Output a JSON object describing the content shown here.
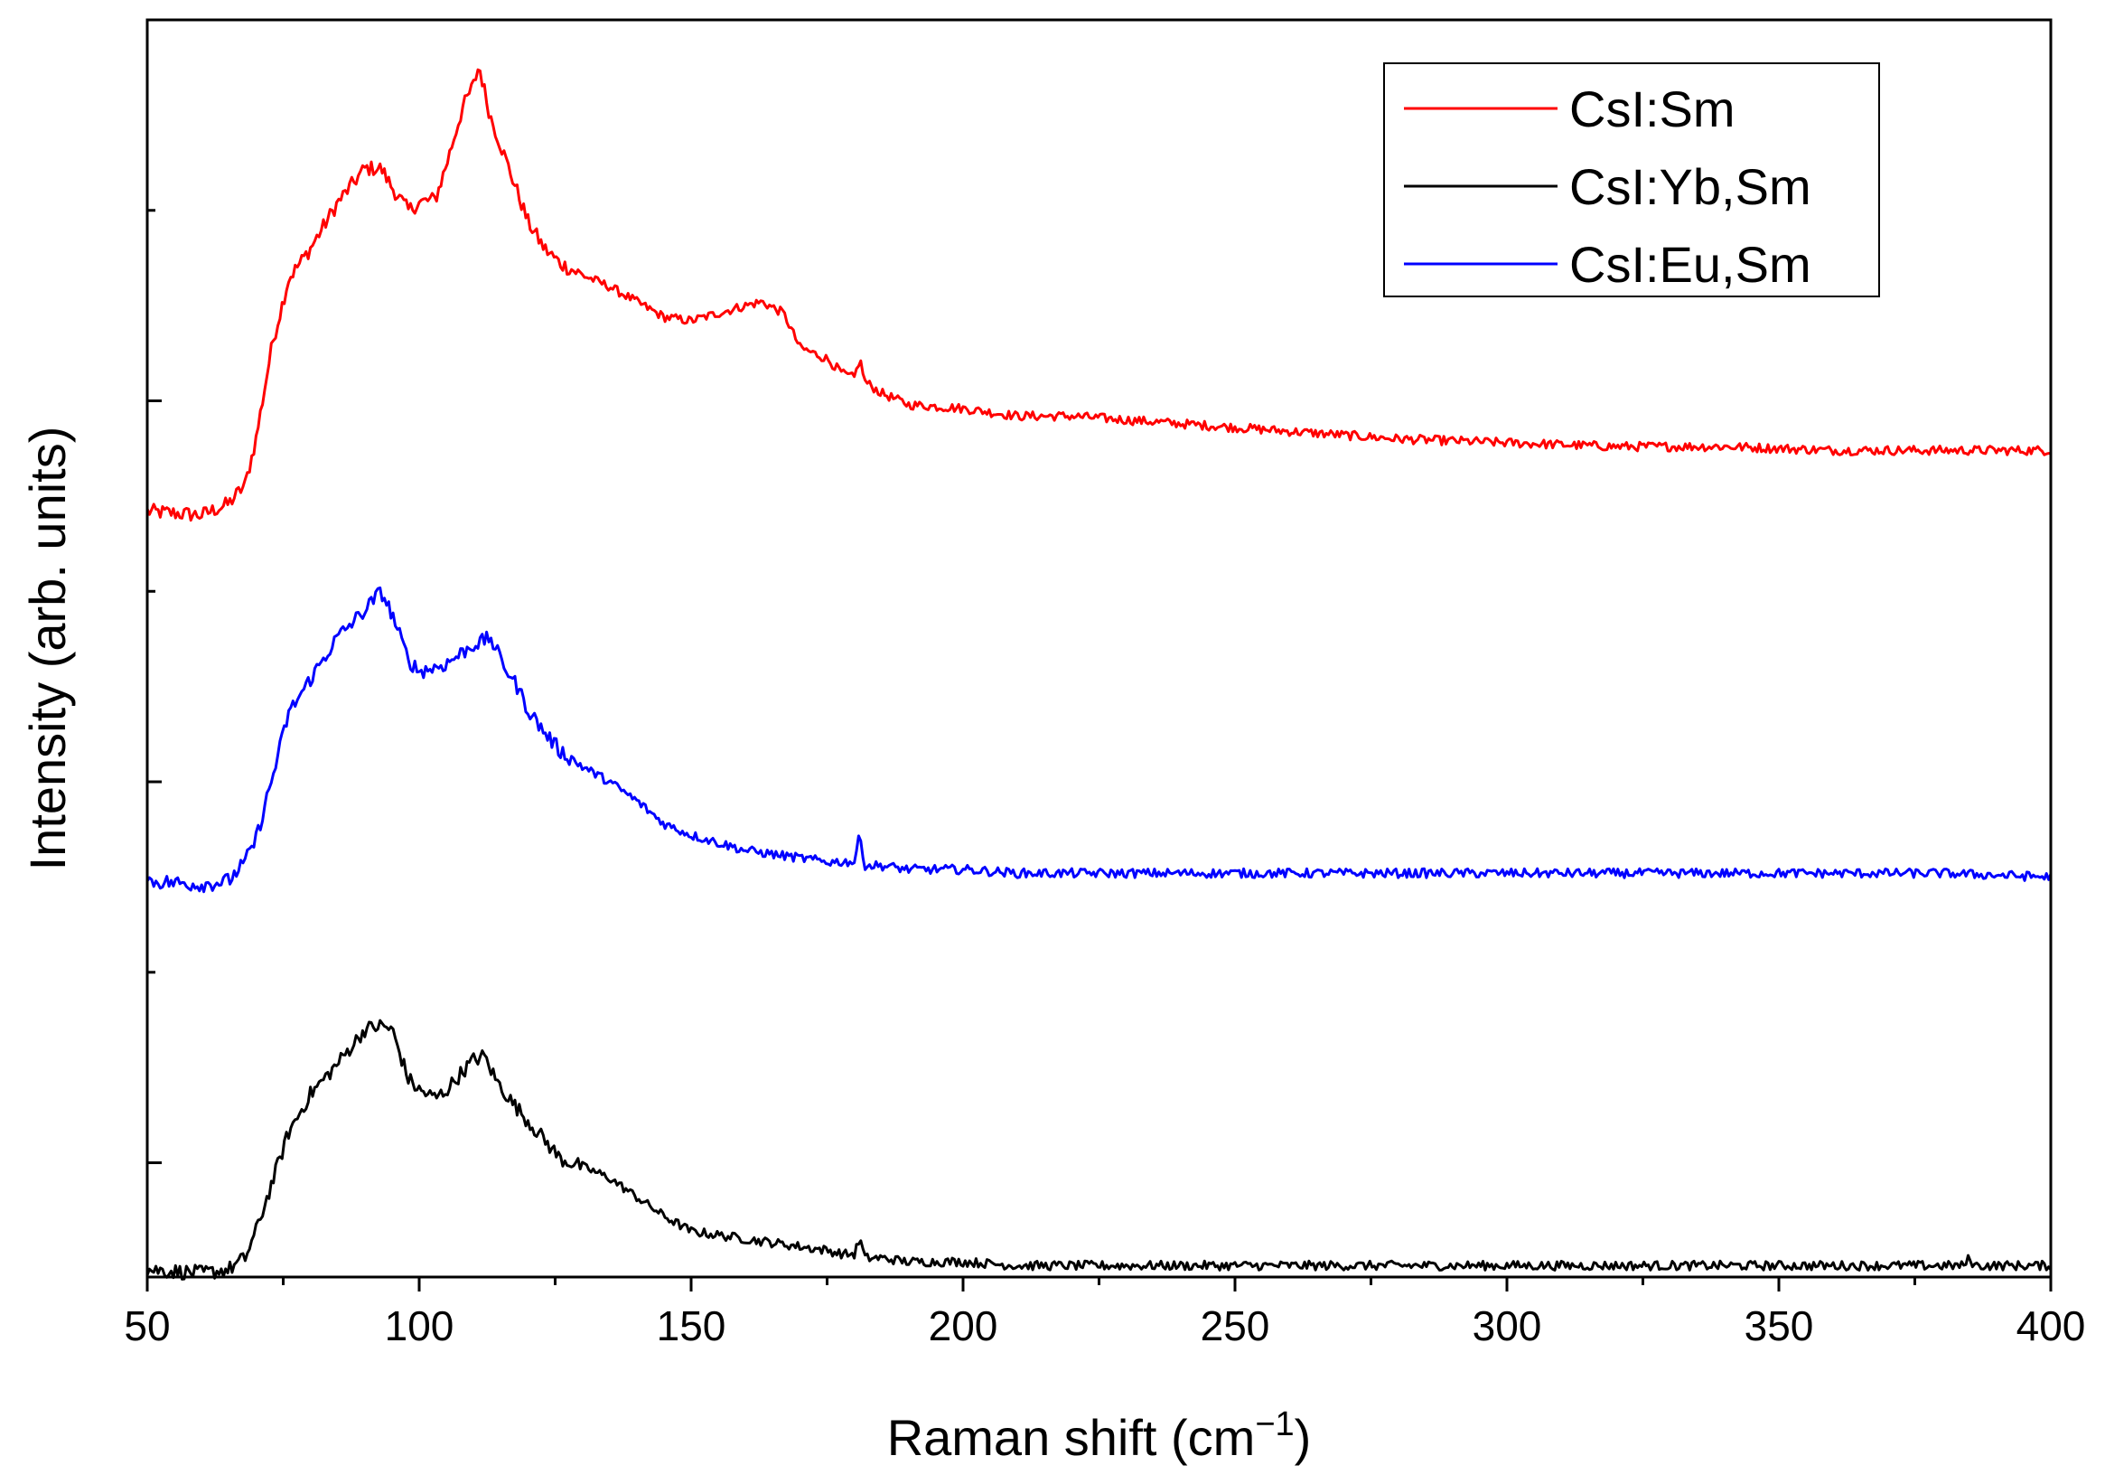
{
  "chart_data": {
    "type": "line",
    "title": "",
    "xlabel_main": "Raman shift (cm",
    "xlabel_sup": "−1",
    "xlabel_close": ")",
    "ylabel": "Intensity (arb. units)",
    "xlim": [
      50,
      400
    ],
    "ylim": [
      0,
      3.3
    ],
    "x_ticks": [
      50,
      100,
      150,
      200,
      250,
      300,
      350,
      400
    ],
    "y_ticks_major": [
      0.3,
      1.3,
      2.3
    ],
    "y_ticks_minor": [
      0.8,
      1.8,
      2.8
    ],
    "grid": false,
    "legend_position": "top-right",
    "series": [
      {
        "name": "CsI:Sm",
        "color": "#ff0000",
        "x": [
          50,
          60,
          65,
          68,
          70,
          73,
          76,
          80,
          85,
          90,
          93,
          95,
          98,
          100,
          103,
          105,
          108,
          110,
          111,
          113,
          116,
          118,
          120,
          123,
          126,
          130,
          135,
          140,
          145,
          150,
          155,
          160,
          163,
          167,
          170,
          175,
          178,
          180,
          181,
          182,
          185,
          190,
          200,
          210,
          220,
          240,
          260,
          280,
          300,
          320,
          340,
          360,
          380,
          400
        ],
        "y": [
          2.01,
          2.0,
          2.03,
          2.08,
          2.2,
          2.45,
          2.62,
          2.7,
          2.82,
          2.91,
          2.91,
          2.86,
          2.8,
          2.82,
          2.83,
          2.92,
          3.07,
          3.13,
          3.18,
          3.05,
          2.93,
          2.85,
          2.77,
          2.7,
          2.66,
          2.63,
          2.6,
          2.56,
          2.52,
          2.51,
          2.53,
          2.55,
          2.56,
          2.53,
          2.44,
          2.41,
          2.37,
          2.36,
          2.41,
          2.35,
          2.32,
          2.29,
          2.28,
          2.26,
          2.26,
          2.24,
          2.22,
          2.2,
          2.19,
          2.18,
          2.18,
          2.17,
          2.17,
          2.17
        ]
      },
      {
        "name": "CsI:Yb,Sm",
        "color": "#000000",
        "x": [
          50,
          60,
          65,
          68,
          70,
          73,
          76,
          80,
          85,
          90,
          93,
          95,
          98,
          100,
          103,
          105,
          108,
          110,
          112,
          114,
          117,
          120,
          123,
          126,
          130,
          135,
          140,
          145,
          150,
          155,
          160,
          165,
          170,
          175,
          178,
          180,
          181,
          182,
          185,
          190,
          200,
          210,
          220,
          240,
          260,
          280,
          300,
          320,
          340,
          360,
          380,
          384,
          385,
          386,
          390,
          400
        ],
        "y": [
          0.02,
          0.01,
          0.02,
          0.05,
          0.12,
          0.25,
          0.38,
          0.48,
          0.56,
          0.65,
          0.66,
          0.65,
          0.52,
          0.49,
          0.47,
          0.49,
          0.54,
          0.57,
          0.58,
          0.52,
          0.46,
          0.41,
          0.36,
          0.31,
          0.29,
          0.26,
          0.21,
          0.16,
          0.12,
          0.11,
          0.1,
          0.09,
          0.08,
          0.07,
          0.06,
          0.06,
          0.1,
          0.05,
          0.05,
          0.04,
          0.04,
          0.03,
          0.03,
          0.03,
          0.03,
          0.03,
          0.03,
          0.03,
          0.03,
          0.03,
          0.03,
          0.03,
          0.05,
          0.03,
          0.03,
          0.03
        ]
      },
      {
        "name": "CsI:Eu,Sm",
        "color": "#0000ff",
        "x": [
          50,
          60,
          65,
          68,
          70,
          73,
          76,
          80,
          85,
          90,
          93,
          95,
          98,
          100,
          103,
          105,
          108,
          110,
          112,
          113,
          115,
          118,
          120,
          123,
          126,
          130,
          135,
          140,
          145,
          150,
          155,
          160,
          165,
          170,
          175,
          178,
          180,
          181,
          182,
          185,
          190,
          200,
          210,
          220,
          240,
          260,
          280,
          300,
          320,
          340,
          360,
          380,
          400
        ],
        "y": [
          1.04,
          1.03,
          1.04,
          1.09,
          1.15,
          1.31,
          1.48,
          1.57,
          1.68,
          1.75,
          1.8,
          1.74,
          1.62,
          1.59,
          1.6,
          1.61,
          1.64,
          1.66,
          1.67,
          1.68,
          1.62,
          1.55,
          1.49,
          1.43,
          1.38,
          1.34,
          1.3,
          1.25,
          1.19,
          1.16,
          1.14,
          1.12,
          1.11,
          1.1,
          1.09,
          1.09,
          1.09,
          1.16,
          1.08,
          1.08,
          1.07,
          1.07,
          1.06,
          1.06,
          1.06,
          1.06,
          1.06,
          1.06,
          1.06,
          1.06,
          1.06,
          1.06,
          1.05
        ]
      }
    ]
  }
}
